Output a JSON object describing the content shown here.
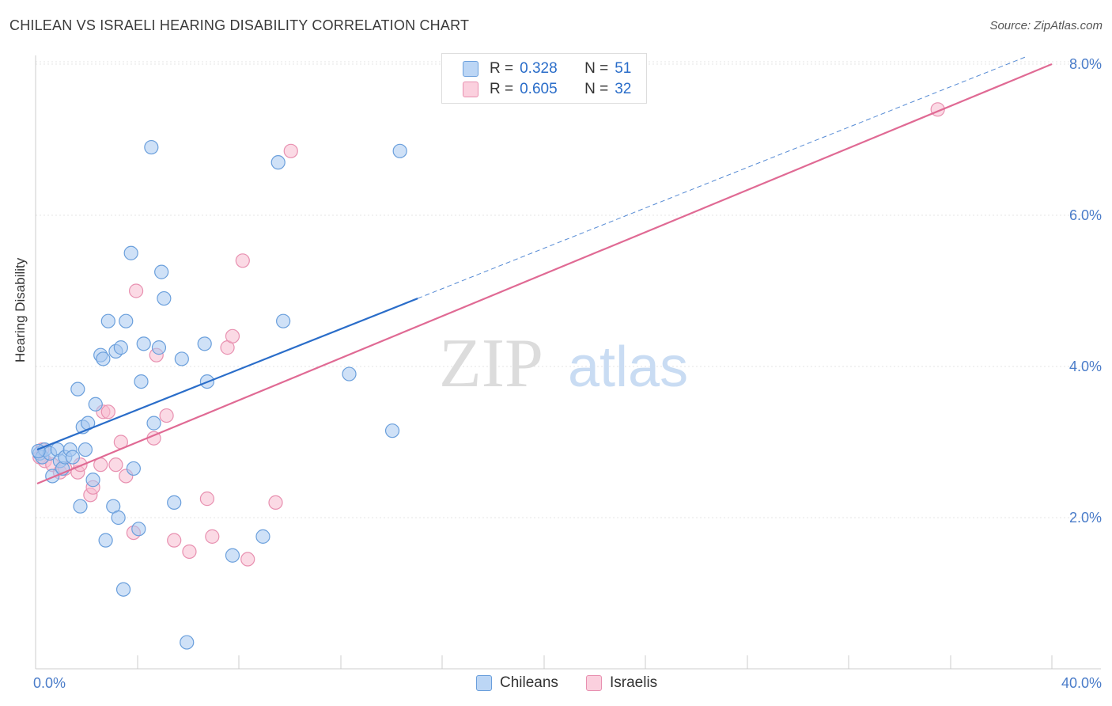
{
  "header": {
    "title": "CHILEAN VS ISRAELI HEARING DISABILITY CORRELATION CHART",
    "source": "Source: ZipAtlas.com"
  },
  "watermark": {
    "zip": "ZIP",
    "atlas": "atlas"
  },
  "legend": {
    "series": [
      {
        "name": "Chileans",
        "r_label": "R =",
        "r_value": "0.328",
        "n_label": "N =",
        "n_value": "51"
      },
      {
        "name": "Israelis",
        "r_label": "R =",
        "r_value": "0.605",
        "n_label": "N =",
        "n_value": "32"
      }
    ]
  },
  "colors": {
    "chileans_fill": "#a8c8f0",
    "chileans_stroke": "#6a9fdc",
    "chileans_line": "#2a6dc9",
    "israelis_fill": "#f8bcd0",
    "israelis_stroke": "#e890b0",
    "israelis_line": "#e06a94",
    "tick_label": "#4a7cc9"
  },
  "chart_data": {
    "type": "scatter",
    "title": "CHILEAN VS ISRAELI HEARING DISABILITY CORRELATION CHART",
    "xlabel": "",
    "ylabel": "Hearing Disability",
    "xlim": [
      0,
      40
    ],
    "ylim": [
      0,
      8.2
    ],
    "x_tick_labels": [
      "0.0%",
      "40.0%"
    ],
    "y_ticks": [
      2,
      4,
      6,
      8
    ],
    "y_tick_labels": [
      "2.0%",
      "4.0%",
      "6.0%",
      "8.0%"
    ],
    "grid": true,
    "legend_position": "top-center",
    "series": [
      {
        "name": "Chileans",
        "points": [
          [
            0.1,
            2.85
          ],
          [
            0.2,
            2.8
          ],
          [
            0.3,
            2.9
          ],
          [
            0.5,
            2.85
          ],
          [
            0.6,
            2.55
          ],
          [
            0.8,
            2.9
          ],
          [
            0.9,
            2.75
          ],
          [
            1.0,
            2.65
          ],
          [
            1.1,
            2.8
          ],
          [
            1.3,
            2.9
          ],
          [
            1.4,
            2.8
          ],
          [
            1.6,
            3.7
          ],
          [
            1.7,
            2.15
          ],
          [
            1.8,
            3.2
          ],
          [
            1.9,
            2.9
          ],
          [
            2.0,
            3.25
          ],
          [
            2.2,
            2.5
          ],
          [
            2.3,
            3.5
          ],
          [
            2.5,
            4.15
          ],
          [
            2.6,
            4.1
          ],
          [
            2.7,
            1.7
          ],
          [
            2.8,
            4.6
          ],
          [
            3.0,
            2.15
          ],
          [
            3.1,
            4.2
          ],
          [
            3.2,
            2.0
          ],
          [
            3.3,
            4.25
          ],
          [
            3.4,
            1.05
          ],
          [
            3.5,
            4.6
          ],
          [
            3.7,
            5.5
          ],
          [
            3.8,
            2.65
          ],
          [
            4.0,
            1.85
          ],
          [
            4.1,
            3.8
          ],
          [
            4.2,
            4.3
          ],
          [
            4.5,
            6.9
          ],
          [
            4.6,
            3.25
          ],
          [
            4.8,
            4.25
          ],
          [
            4.9,
            5.25
          ],
          [
            5.0,
            4.9
          ],
          [
            5.4,
            2.2
          ],
          [
            5.7,
            4.1
          ],
          [
            5.9,
            0.35
          ],
          [
            6.6,
            4.3
          ],
          [
            6.7,
            3.8
          ],
          [
            7.7,
            1.5
          ],
          [
            8.9,
            1.75
          ],
          [
            9.5,
            6.7
          ],
          [
            9.7,
            4.6
          ],
          [
            12.3,
            3.9
          ],
          [
            14.0,
            3.15
          ],
          [
            14.3,
            6.85
          ],
          [
            0.05,
            2.88
          ]
        ]
      },
      {
        "name": "Israelis",
        "points": [
          [
            0.1,
            2.8
          ],
          [
            0.3,
            2.75
          ],
          [
            0.6,
            2.7
          ],
          [
            0.9,
            2.6
          ],
          [
            1.1,
            2.65
          ],
          [
            1.6,
            2.6
          ],
          [
            1.7,
            2.7
          ],
          [
            2.1,
            2.3
          ],
          [
            2.2,
            2.4
          ],
          [
            2.5,
            2.7
          ],
          [
            2.6,
            3.4
          ],
          [
            2.8,
            3.4
          ],
          [
            3.1,
            2.7
          ],
          [
            3.3,
            3.0
          ],
          [
            3.5,
            2.55
          ],
          [
            3.8,
            1.8
          ],
          [
            3.9,
            5.0
          ],
          [
            4.6,
            3.05
          ],
          [
            4.7,
            4.15
          ],
          [
            5.1,
            3.35
          ],
          [
            5.4,
            1.7
          ],
          [
            6.0,
            1.55
          ],
          [
            6.7,
            2.25
          ],
          [
            6.9,
            1.75
          ],
          [
            7.5,
            4.25
          ],
          [
            7.7,
            4.4
          ],
          [
            8.1,
            5.4
          ],
          [
            8.3,
            1.45
          ],
          [
            9.4,
            2.2
          ],
          [
            10.0,
            6.85
          ],
          [
            35.5,
            7.4
          ],
          [
            0.2,
            2.9
          ]
        ]
      }
    ],
    "trend_lines": [
      {
        "name": "Chileans",
        "x": [
          0,
          15
        ],
        "y": [
          2.9,
          4.9
        ],
        "dashed_extension_to_x": 39
      },
      {
        "name": "Israelis",
        "x": [
          0,
          40
        ],
        "y": [
          2.45,
          8.0
        ]
      }
    ]
  }
}
